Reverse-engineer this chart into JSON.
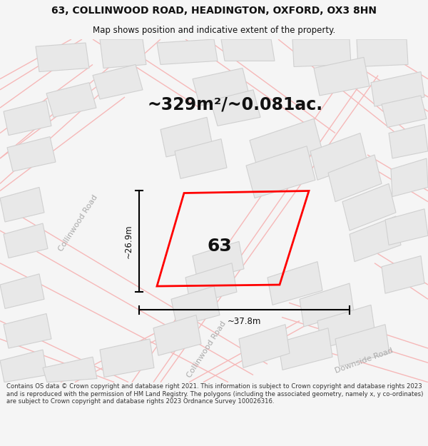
{
  "title_line1": "63, COLLINWOOD ROAD, HEADINGTON, OXFORD, OX3 8HN",
  "title_line2": "Map shows position and indicative extent of the property.",
  "area_text": "~329m²/~0.081ac.",
  "label_63": "63",
  "dim_width": "~37.8m",
  "dim_height": "~26.9m",
  "road_label_collinwood": "Collinwood Road",
  "road_label_downside": "Downside Road",
  "footer_text": "Contains OS data © Crown copyright and database right 2021. This information is subject to Crown copyright and database rights 2023 and is reproduced with the permission of HM Land Registry. The polygons (including the associated geometry, namely x, y co-ordinates) are subject to Crown copyright and database rights 2023 Ordnance Survey 100026316.",
  "bg_color": "#f5f5f5",
  "map_bg": "#ffffff",
  "plot_outline_color": "#ff0000",
  "building_fill": "#e8e8e8",
  "building_edge": "#d0d0d0",
  "road_line_color": "#f5b8b8",
  "road_label_color": "#aaaaaa",
  "dim_line_color": "#000000",
  "text_color": "#111111",
  "footer_color": "#333333",
  "title_fontsize": 10,
  "subtitle_fontsize": 8.5,
  "area_fontsize": 17,
  "label_fontsize": 18,
  "dim_fontsize": 8.5,
  "road_label_fontsize": 8,
  "footer_fontsize": 6.1
}
